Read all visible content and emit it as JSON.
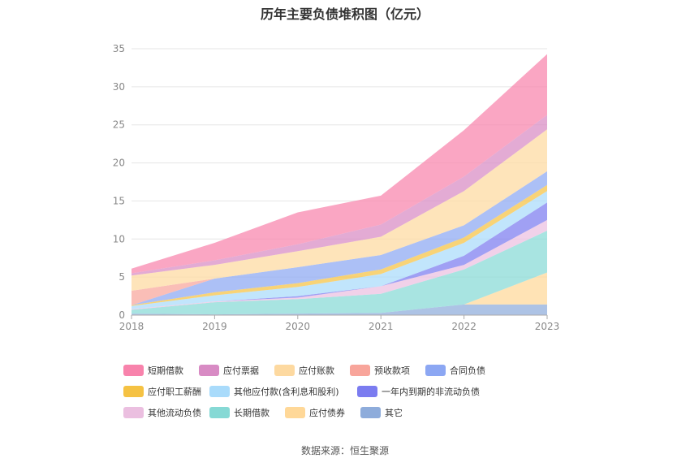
{
  "title": "历年主要负债堆积图（亿元）",
  "source": "数据来源：恒生聚源",
  "chart_data": {
    "type": "area",
    "stacked": true,
    "categories": [
      "2018",
      "2019",
      "2020",
      "2021",
      "2022",
      "2023"
    ],
    "ylim": [
      0,
      35
    ],
    "yticks": [
      0,
      5,
      10,
      15,
      20,
      25,
      30,
      35
    ],
    "grid": true,
    "legend_position": "bottom",
    "series": [
      {
        "name": "其它",
        "color": "#8eacdb",
        "values": [
          0.2,
          0.1,
          0.2,
          0.3,
          1.4,
          1.4
        ]
      },
      {
        "name": "应付债券",
        "color": "#ffd898",
        "values": [
          0,
          0,
          0,
          0,
          0,
          4.2
        ]
      },
      {
        "name": "长期借款",
        "color": "#86d9d5",
        "values": [
          0.5,
          1.6,
          1.9,
          2.5,
          4.6,
          5.5
        ]
      },
      {
        "name": "其他流动负债",
        "color": "#ebbfe0",
        "values": [
          0.1,
          0.1,
          0.2,
          1.0,
          0.6,
          1.4
        ]
      },
      {
        "name": "一年内到期的非流动负债",
        "color": "#7b7cf0",
        "values": [
          0,
          0,
          0.2,
          0,
          1.2,
          2.3
        ]
      },
      {
        "name": "其他应付款(含利息和股利)",
        "color": "#a9dbfb",
        "values": [
          0.4,
          0.8,
          1.2,
          1.6,
          1.7,
          1.5
        ]
      },
      {
        "name": "应付职工薪酬",
        "color": "#f5c243",
        "values": [
          0.1,
          0.4,
          0.5,
          0.6,
          0.7,
          0.8
        ]
      },
      {
        "name": "合同负债",
        "color": "#8ca7f3",
        "values": [
          0,
          1.8,
          2.1,
          1.9,
          1.6,
          1.8
        ]
      },
      {
        "name": "预收款项",
        "color": "#f8a59b",
        "values": [
          1.9,
          0,
          0,
          0,
          0,
          0
        ]
      },
      {
        "name": "应付账款",
        "color": "#fdd9a0",
        "values": [
          2.0,
          1.8,
          2.1,
          2.4,
          4.5,
          5.5
        ]
      },
      {
        "name": "应付票据",
        "color": "#d88bc4",
        "values": [
          0.3,
          0.6,
          0.9,
          1.6,
          1.9,
          1.9
        ]
      },
      {
        "name": "短期借款",
        "color": "#f883ac",
        "values": [
          0.6,
          2.3,
          4.2,
          3.8,
          6.1,
          8.0
        ]
      }
    ],
    "legend_order": [
      "短期借款",
      "应付票据",
      "应付账款",
      "预收款项",
      "合同负债",
      "应付职工薪酬",
      "其他应付款(含利息和股利)",
      "一年内到期的非流动负债",
      "其他流动负债",
      "长期借款",
      "应付债券",
      "其它"
    ]
  }
}
